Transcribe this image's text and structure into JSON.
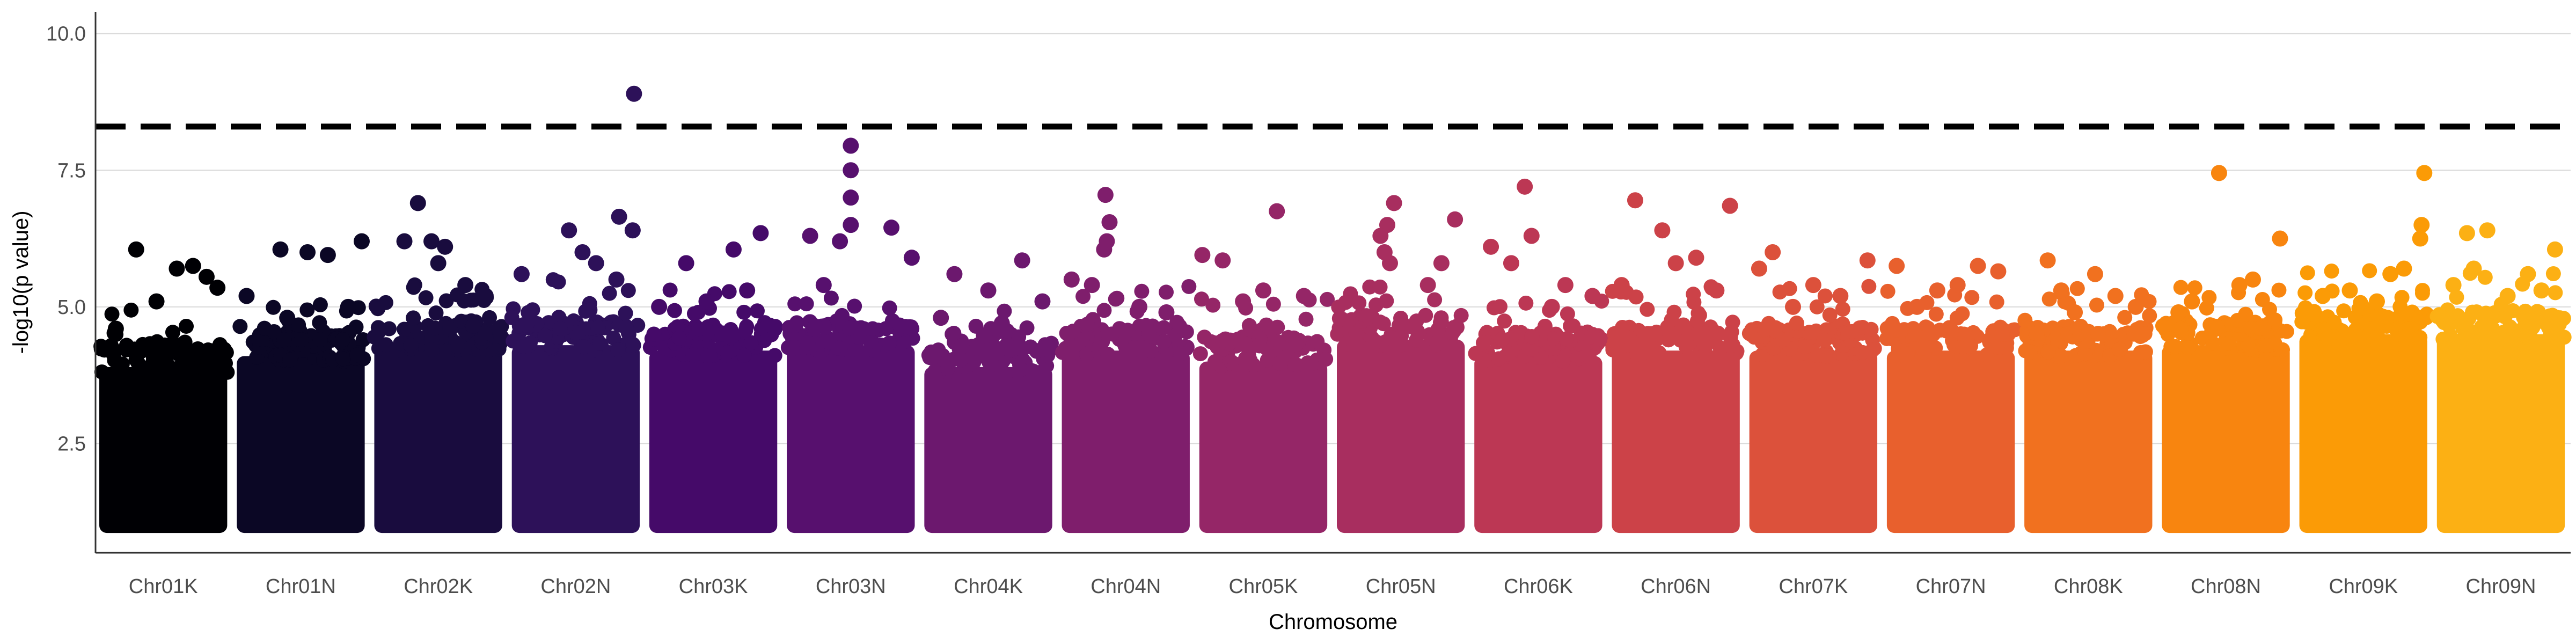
{
  "chart_data": {
    "type": "scatter",
    "subtype": "manhattan",
    "title": "",
    "xlabel": "Chromosome",
    "ylabel": "-log10(p value)",
    "ylim": [
      0.5,
      10.4
    ],
    "yticks": [
      2.5,
      5.0,
      7.5,
      10.0
    ],
    "ytick_labels": [
      "2.5",
      "5.0",
      "7.5",
      "10.0"
    ],
    "grid": "horizontal major",
    "legend": "none",
    "threshold": {
      "value": 8.3,
      "style": "dashed",
      "color": "#000000"
    },
    "floor_value": 1.0,
    "categories": [
      "Chr01K",
      "Chr01N",
      "Chr02K",
      "Chr02N",
      "Chr03K",
      "Chr03N",
      "Chr04K",
      "Chr04N",
      "Chr05K",
      "Chr05N",
      "Chr06K",
      "Chr06N",
      "Chr07K",
      "Chr07N",
      "Chr08K",
      "Chr08N",
      "Chr09K",
      "Chr09N"
    ],
    "series": [
      {
        "chromosome": "Chr01K",
        "color": "#000004",
        "dense_top": 3.9,
        "peaks": [
          [
            0.3,
            6.05
          ],
          [
            0.6,
            5.7
          ],
          [
            0.72,
            5.75
          ],
          [
            0.82,
            5.55
          ],
          [
            0.45,
            5.1
          ],
          [
            0.9,
            5.35
          ],
          [
            0.15,
            4.6
          ]
        ]
      },
      {
        "chromosome": "Chr01N",
        "color": "#0b0725",
        "dense_top": 4.1,
        "peaks": [
          [
            0.35,
            6.05
          ],
          [
            0.55,
            6.0
          ],
          [
            0.7,
            5.95
          ],
          [
            0.95,
            6.2
          ],
          [
            0.1,
            5.2
          ],
          [
            0.4,
            4.8
          ],
          [
            0.85,
            5.0
          ]
        ]
      },
      {
        "chromosome": "Chr02K",
        "color": "#190c3e",
        "dense_top": 4.3,
        "peaks": [
          [
            0.35,
            6.9
          ],
          [
            0.45,
            6.2
          ],
          [
            0.55,
            6.1
          ],
          [
            0.25,
            6.2
          ],
          [
            0.5,
            5.8
          ],
          [
            0.7,
            5.4
          ],
          [
            0.85,
            5.2
          ]
        ]
      },
      {
        "chromosome": "Chr02N",
        "color": "#2d1159",
        "dense_top": 4.3,
        "peaks": [
          [
            0.93,
            8.9
          ],
          [
            0.82,
            6.65
          ],
          [
            0.45,
            6.4
          ],
          [
            0.92,
            6.4
          ],
          [
            0.55,
            6.0
          ],
          [
            0.65,
            5.8
          ],
          [
            0.1,
            5.6
          ],
          [
            0.8,
            5.5
          ]
        ]
      },
      {
        "chromosome": "Chr03K",
        "color": "#450a69",
        "dense_top": 4.2,
        "peaks": [
          [
            0.65,
            6.05
          ],
          [
            0.85,
            6.35
          ],
          [
            0.3,
            5.8
          ],
          [
            0.1,
            5.0
          ],
          [
            0.45,
            5.1
          ],
          [
            0.75,
            5.3
          ]
        ]
      },
      {
        "chromosome": "Chr03N",
        "color": "#57106e",
        "dense_top": 4.3,
        "peaks": [
          [
            0.5,
            7.95
          ],
          [
            0.5,
            7.5
          ],
          [
            0.5,
            7.0
          ],
          [
            0.5,
            6.5
          ],
          [
            0.2,
            6.3
          ],
          [
            0.8,
            6.45
          ],
          [
            0.42,
            6.2
          ],
          [
            0.95,
            5.9
          ],
          [
            0.3,
            5.4
          ]
        ]
      },
      {
        "chromosome": "Chr04K",
        "color": "#6c186e",
        "dense_top": 3.9,
        "peaks": [
          [
            0.75,
            5.85
          ],
          [
            0.25,
            5.6
          ],
          [
            0.5,
            5.3
          ],
          [
            0.9,
            5.1
          ],
          [
            0.15,
            4.8
          ],
          [
            0.6,
            4.7
          ]
        ]
      },
      {
        "chromosome": "Chr04N",
        "color": "#7f1e6c",
        "dense_top": 4.2,
        "peaks": [
          [
            0.35,
            7.05
          ],
          [
            0.38,
            6.55
          ],
          [
            0.36,
            6.2
          ],
          [
            0.34,
            6.05
          ],
          [
            0.1,
            5.5
          ],
          [
            0.25,
            5.4
          ],
          [
            0.6,
            5.0
          ],
          [
            0.8,
            4.9
          ]
        ]
      },
      {
        "chromosome": "Chr05K",
        "color": "#952667",
        "dense_top": 4.0,
        "peaks": [
          [
            0.6,
            6.75
          ],
          [
            0.05,
            5.95
          ],
          [
            0.2,
            5.85
          ],
          [
            0.5,
            5.3
          ],
          [
            0.35,
            5.1
          ],
          [
            0.8,
            5.2
          ]
        ]
      },
      {
        "chromosome": "Chr05N",
        "color": "#a82e5f",
        "dense_top": 4.4,
        "peaks": [
          [
            0.45,
            6.9
          ],
          [
            0.4,
            6.5
          ],
          [
            0.35,
            6.3
          ],
          [
            0.38,
            6.0
          ],
          [
            0.42,
            5.8
          ],
          [
            0.9,
            6.6
          ],
          [
            0.8,
            5.8
          ],
          [
            0.7,
            5.4
          ]
        ]
      },
      {
        "chromosome": "Chr06K",
        "color": "#bc3754",
        "dense_top": 4.1,
        "peaks": [
          [
            0.4,
            7.2
          ],
          [
            0.15,
            6.1
          ],
          [
            0.45,
            6.3
          ],
          [
            0.3,
            5.8
          ],
          [
            0.7,
            5.4
          ],
          [
            0.9,
            5.2
          ],
          [
            0.6,
            5.0
          ]
        ]
      },
      {
        "chromosome": "Chr06N",
        "color": "#cc4248",
        "dense_top": 4.2,
        "peaks": [
          [
            0.2,
            6.95
          ],
          [
            0.9,
            6.85
          ],
          [
            0.4,
            6.4
          ],
          [
            0.5,
            5.8
          ],
          [
            0.65,
            5.9
          ],
          [
            0.1,
            5.4
          ],
          [
            0.8,
            5.3
          ]
        ]
      },
      {
        "chromosome": "Chr07K",
        "color": "#dc513b",
        "dense_top": 4.2,
        "peaks": [
          [
            0.2,
            6.0
          ],
          [
            0.9,
            5.85
          ],
          [
            0.1,
            5.7
          ],
          [
            0.5,
            5.4
          ],
          [
            0.7,
            5.2
          ],
          [
            0.35,
            5.0
          ]
        ]
      },
      {
        "chromosome": "Chr07N",
        "color": "#e8602d",
        "dense_top": 4.2,
        "peaks": [
          [
            0.1,
            5.75
          ],
          [
            0.7,
            5.75
          ],
          [
            0.85,
            5.65
          ],
          [
            0.4,
            5.3
          ],
          [
            0.55,
            5.4
          ],
          [
            0.25,
            5.0
          ]
        ]
      },
      {
        "chromosome": "Chr08K",
        "color": "#f1711f",
        "dense_top": 4.2,
        "peaks": [
          [
            0.2,
            5.85
          ],
          [
            0.3,
            5.3
          ],
          [
            0.55,
            5.6
          ],
          [
            0.7,
            5.2
          ],
          [
            0.85,
            5.0
          ],
          [
            0.4,
            4.9
          ]
        ]
      },
      {
        "chromosome": "Chr08N",
        "color": "#f8850f",
        "dense_top": 4.3,
        "peaks": [
          [
            0.45,
            7.45
          ],
          [
            0.9,
            6.25
          ],
          [
            0.7,
            5.5
          ],
          [
            0.25,
            5.1
          ],
          [
            0.6,
            5.4
          ],
          [
            0.15,
            4.9
          ]
        ]
      },
      {
        "chromosome": "Chr09K",
        "color": "#fb9b06",
        "dense_top": 4.5,
        "peaks": [
          [
            0.95,
            7.45
          ],
          [
            0.93,
            6.5
          ],
          [
            0.92,
            6.25
          ],
          [
            0.7,
            5.6
          ],
          [
            0.8,
            5.7
          ],
          [
            0.4,
            5.3
          ],
          [
            0.6,
            5.1
          ],
          [
            0.2,
            5.2
          ]
        ]
      },
      {
        "chromosome": "Chr09N",
        "color": "#fcb014",
        "dense_top": 4.5,
        "peaks": [
          [
            0.25,
            6.35
          ],
          [
            0.4,
            6.4
          ],
          [
            0.7,
            5.6
          ],
          [
            0.9,
            6.05
          ],
          [
            0.3,
            5.7
          ],
          [
            0.55,
            5.2
          ],
          [
            0.15,
            5.4
          ],
          [
            0.8,
            5.3
          ]
        ]
      }
    ]
  }
}
